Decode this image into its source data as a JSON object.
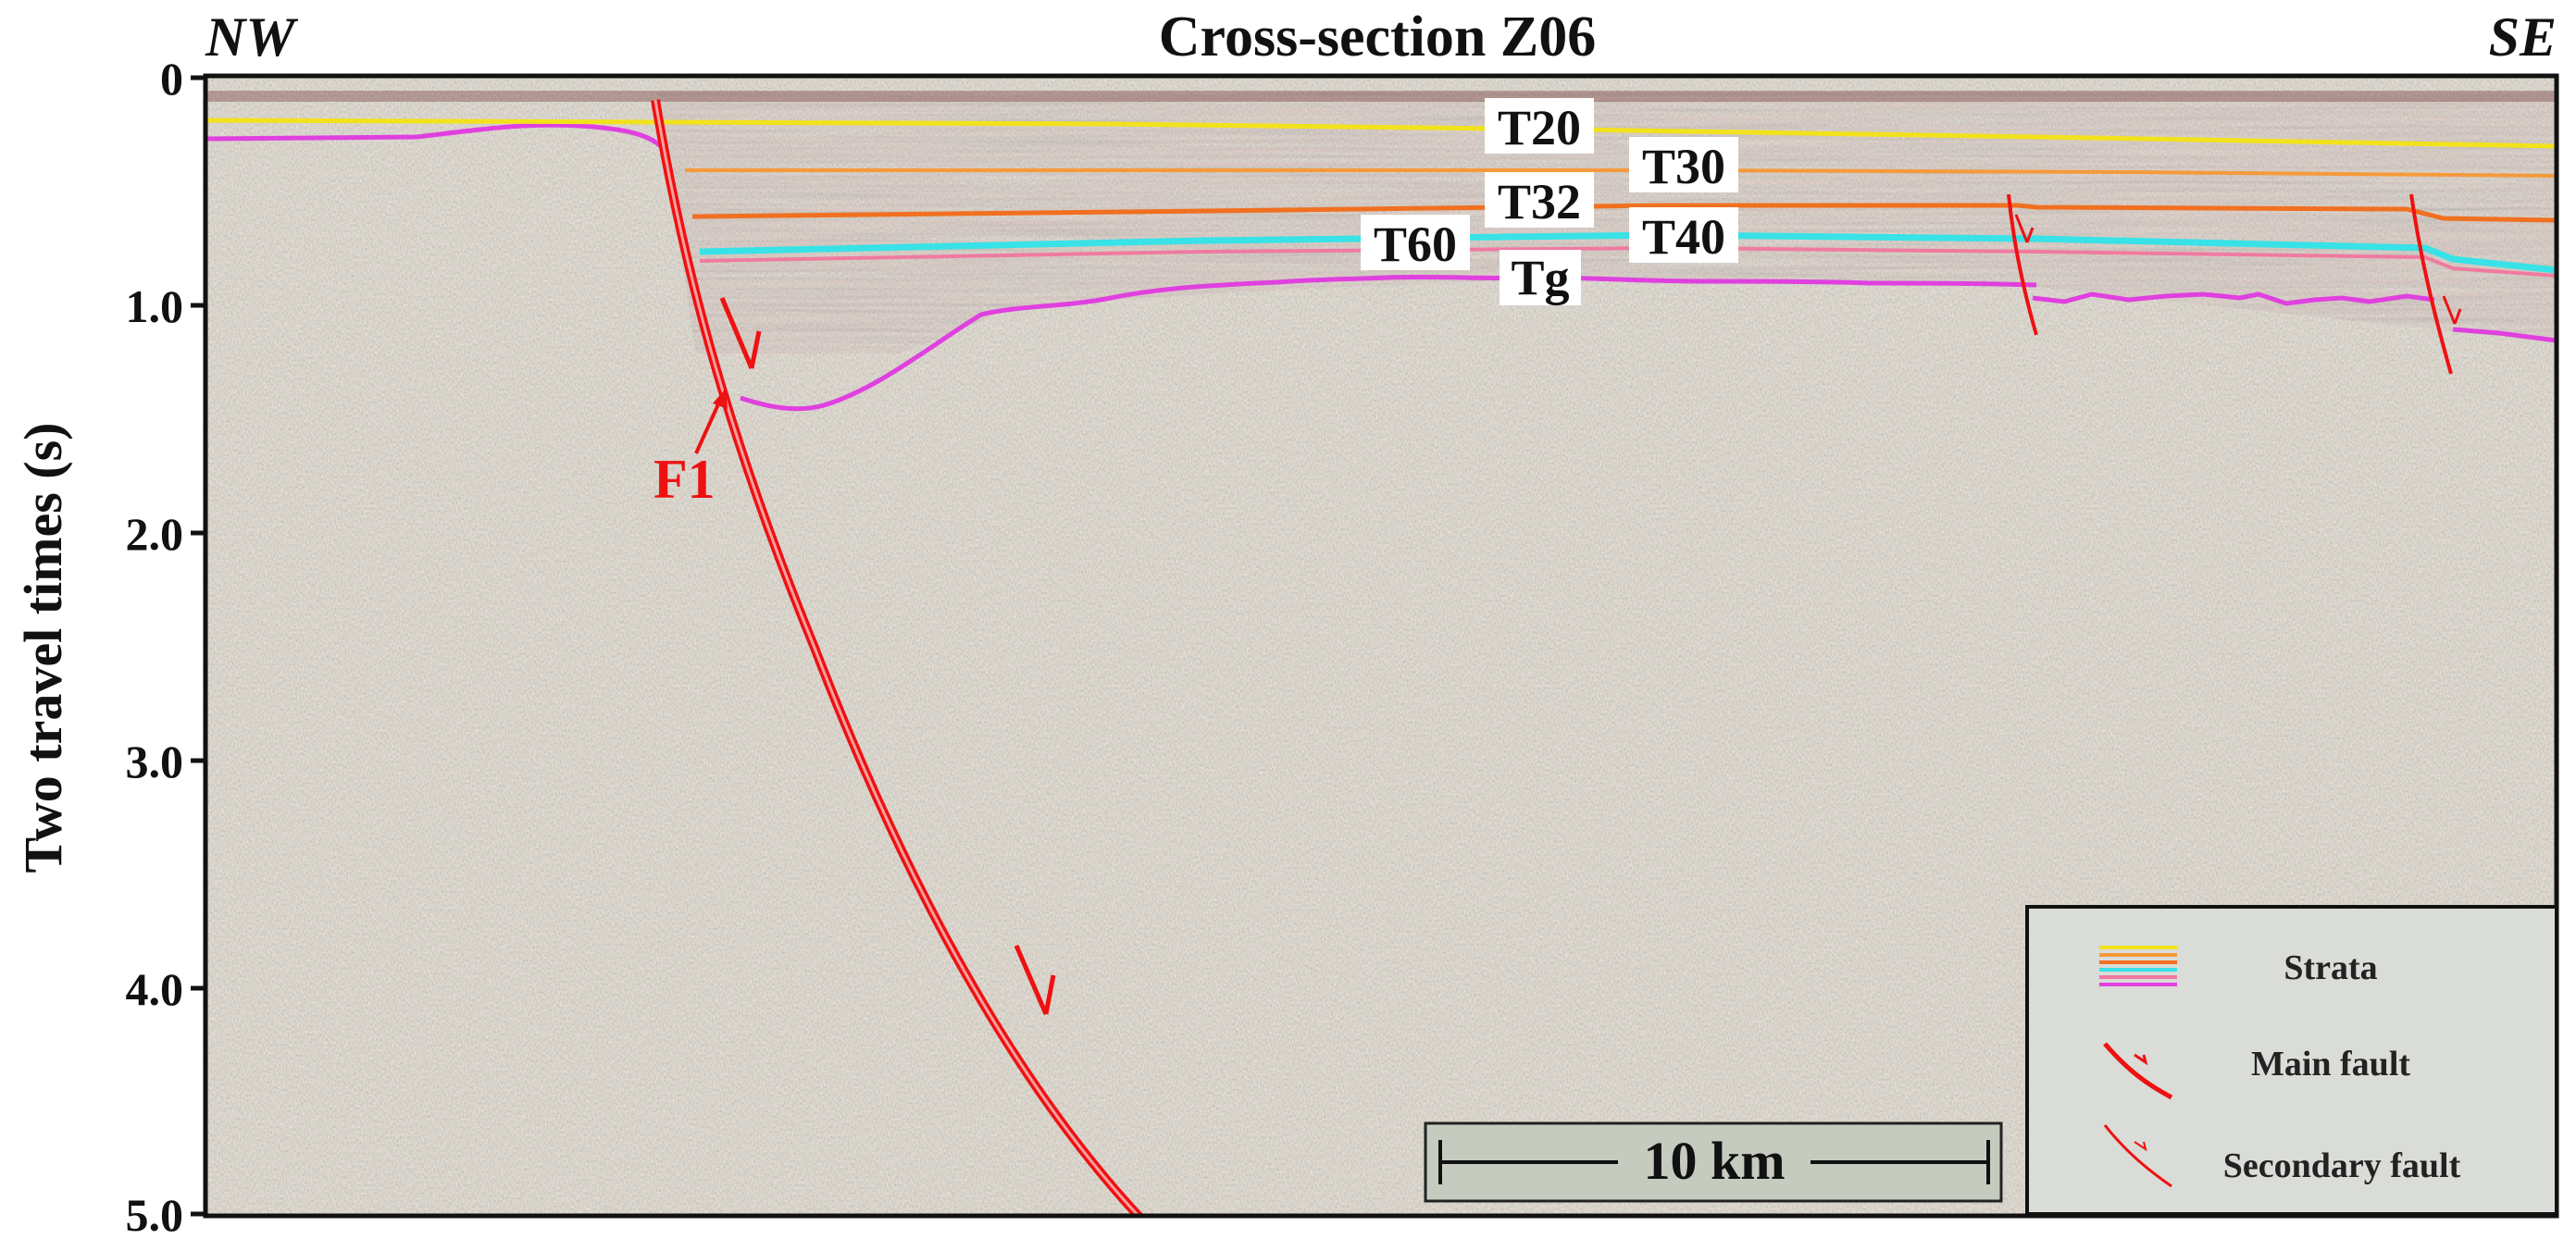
{
  "title": "Cross-section Z06",
  "direction_left": "NW",
  "direction_right": "SE",
  "y_axis": {
    "label": "Two travel times (s)",
    "range": [
      0,
      5
    ],
    "ticks": [
      "0",
      "1.0",
      "2.0",
      "3.0",
      "4.0",
      "5.0"
    ]
  },
  "horizons": [
    {
      "name": "T20",
      "color": "#f2e21c"
    },
    {
      "name": "T30",
      "color": "#f59a3a"
    },
    {
      "name": "T32",
      "color": "#f07020"
    },
    {
      "name": "T40",
      "color": "#f07aa0"
    },
    {
      "name": "T60",
      "color": "#38e2e6"
    },
    {
      "name": "Tg",
      "color": "#e040e0"
    }
  ],
  "faults": {
    "main_label": "F1",
    "color": "#ee1111"
  },
  "scale_bar": {
    "label": "10 km"
  },
  "legend": {
    "items": [
      {
        "label": "Strata",
        "icon": "strata-lines-icon"
      },
      {
        "label": "Main fault",
        "icon": "main-fault-icon"
      },
      {
        "label": "Secondary fault",
        "icon": "secondary-fault-icon"
      }
    ]
  },
  "colors": {
    "seismic_background": "#b8c0b0",
    "fault": "#ee1111",
    "frame": "#111111"
  }
}
